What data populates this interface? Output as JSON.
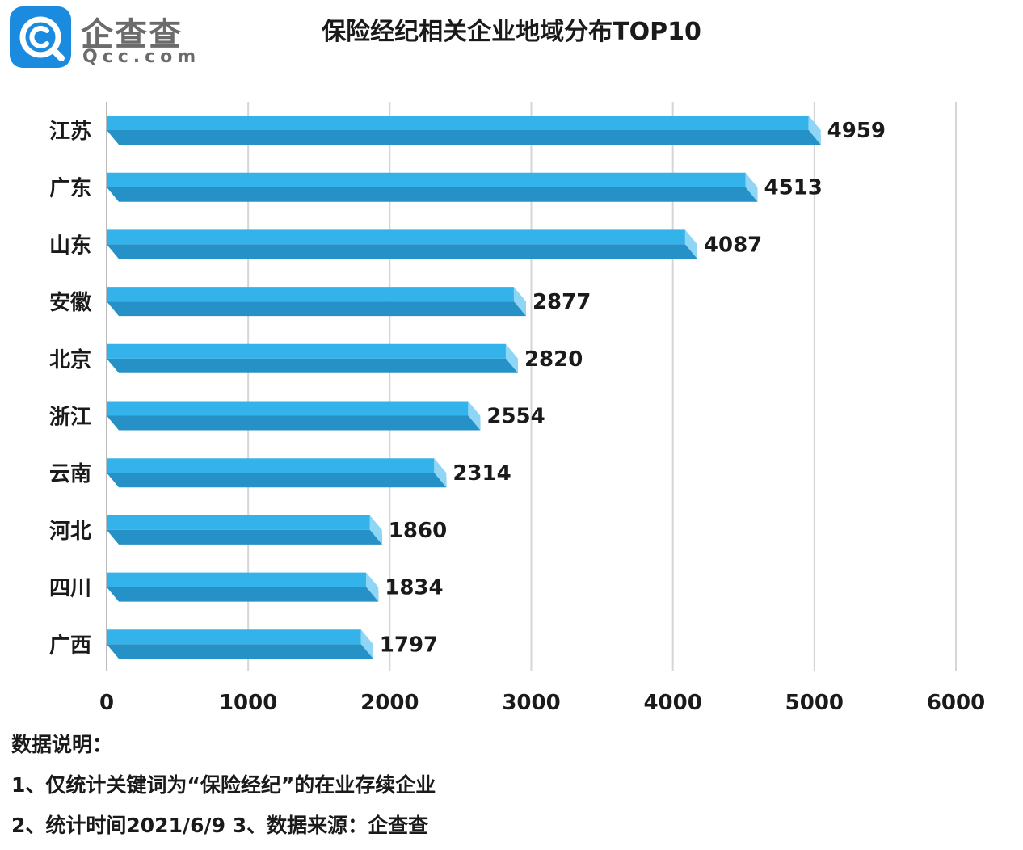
{
  "logo": {
    "name": "企查查",
    "domain": "Qcc.com"
  },
  "notes": {
    "heading": "数据说明：",
    "line1": "1、仅统计关键词为“保险经纪”的在业存续企业",
    "line2": "2、统计时间2021/6/9    3、数据来源：企查查"
  },
  "colors": {
    "bar_face": "#33b3ea",
    "bar_bottom": "#2691c6",
    "bar_cap": "#8fd6f6",
    "grid": "#d6d6d6",
    "axis": "#bbbbbb",
    "logo_blue": "#1b8be0"
  },
  "chart_data": {
    "type": "bar",
    "orientation": "horizontal",
    "title": "保险经纪相关企业地域分布TOP10",
    "categories": [
      "江苏",
      "广东",
      "山东",
      "安徽",
      "北京",
      "浙江",
      "云南",
      "河北",
      "四川",
      "广西"
    ],
    "values": [
      4959,
      4513,
      4087,
      2877,
      2820,
      2554,
      2314,
      1860,
      1834,
      1797
    ],
    "xlim": [
      0,
      6000
    ],
    "xticks": [
      0,
      1000,
      2000,
      3000,
      4000,
      5000,
      6000
    ],
    "xlabel": "",
    "ylabel": "",
    "grid": true,
    "data_labels": true
  }
}
